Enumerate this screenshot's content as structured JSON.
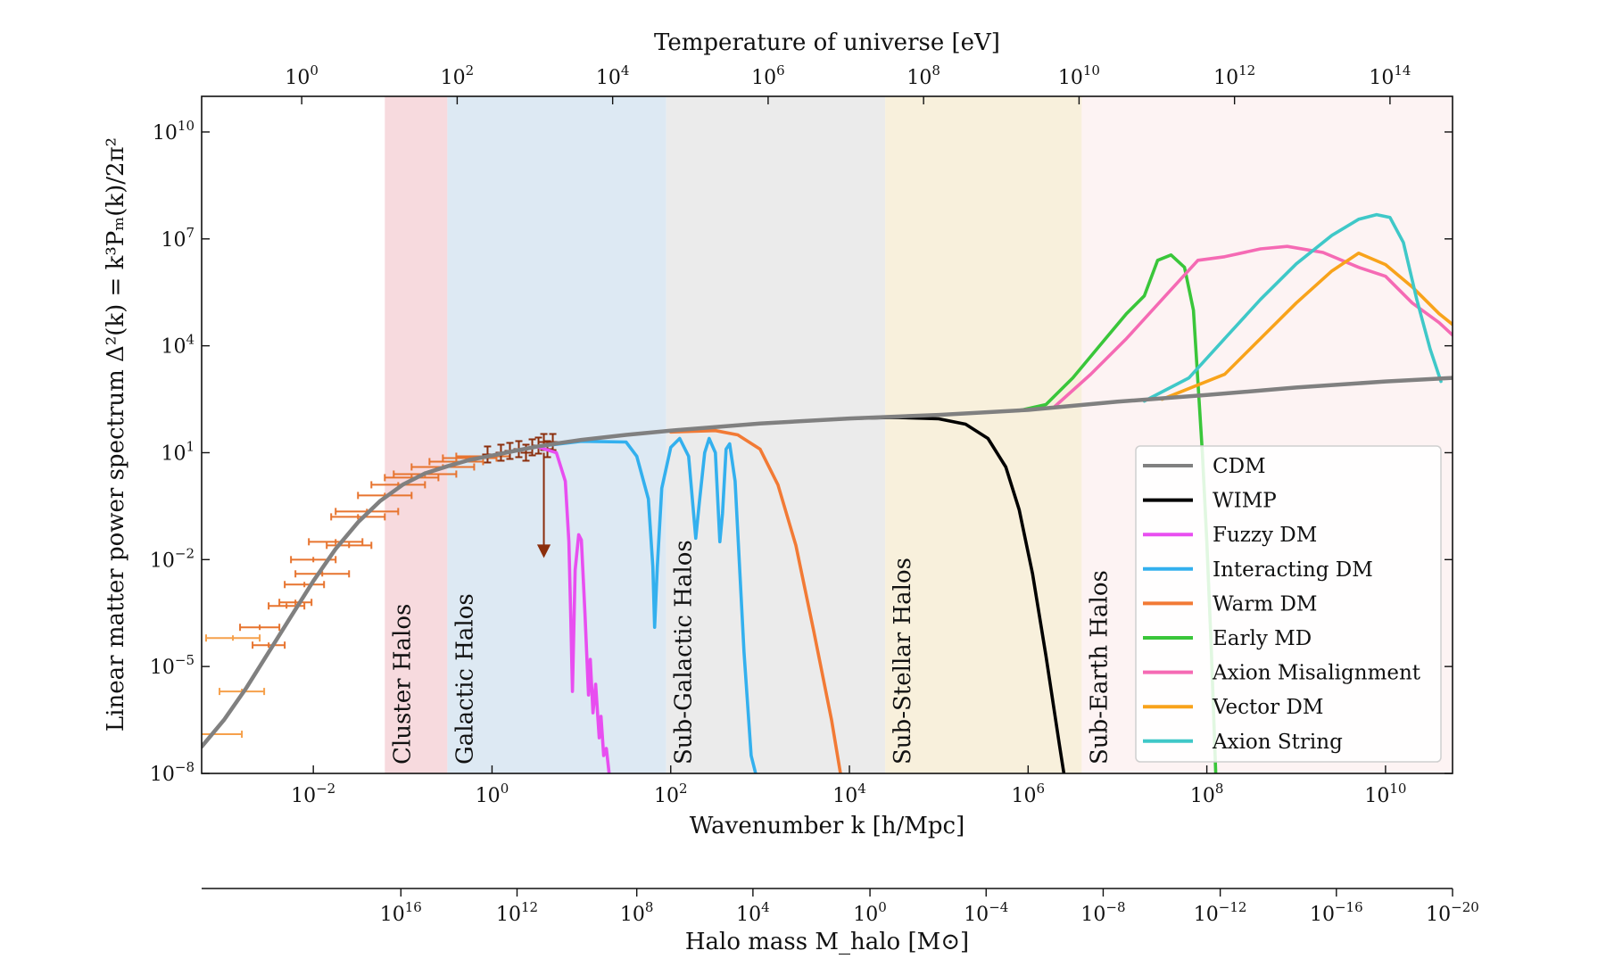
{
  "chart_data": {
    "type": "line",
    "xscale": "log",
    "yscale": "log",
    "xlabel": "Wavenumber k  [h/Mpc]",
    "ylabel": "Linear matter power spectrum Δ²(k) = k³Pₘ(k)/2π²",
    "top_xlabel": "Temperature of universe [eV]",
    "bottom_xlabel": "Halo mass M_halo [M⊙]",
    "xlim_log10": [
      -3.25,
      10.75
    ],
    "ylim_log10": [
      -8,
      11
    ],
    "x_ticks": [
      {
        "base": "10",
        "exp": "−2",
        "log10": -2
      },
      {
        "base": "10",
        "exp": "0",
        "log10": 0
      },
      {
        "base": "10",
        "exp": "2",
        "log10": 2
      },
      {
        "base": "10",
        "exp": "4",
        "log10": 4
      },
      {
        "base": "10",
        "exp": "6",
        "log10": 6
      },
      {
        "base": "10",
        "exp": "8",
        "log10": 8
      },
      {
        "base": "10",
        "exp": "10",
        "log10": 10
      }
    ],
    "y_ticks": [
      {
        "base": "10",
        "exp": "−8",
        "log10": -8
      },
      {
        "base": "10",
        "exp": "−5",
        "log10": -5
      },
      {
        "base": "10",
        "exp": "−2",
        "log10": -2
      },
      {
        "base": "10",
        "exp": "1",
        "log10": 1
      },
      {
        "base": "10",
        "exp": "4",
        "log10": 4
      },
      {
        "base": "10",
        "exp": "7",
        "log10": 7
      },
      {
        "base": "10",
        "exp": "10",
        "log10": 10
      }
    ],
    "top_ticks": [
      {
        "base": "10",
        "exp": "0",
        "log10_k": -2.13
      },
      {
        "base": "10",
        "exp": "2",
        "log10_k": -0.39
      },
      {
        "base": "10",
        "exp": "4",
        "log10_k": 1.35
      },
      {
        "base": "10",
        "exp": "6",
        "log10_k": 3.09
      },
      {
        "base": "10",
        "exp": "8",
        "log10_k": 4.83
      },
      {
        "base": "10",
        "exp": "10",
        "log10_k": 6.57
      },
      {
        "base": "10",
        "exp": "12",
        "log10_k": 8.31
      },
      {
        "base": "10",
        "exp": "14",
        "log10_k": 10.05
      }
    ],
    "bottom_ticks": [
      {
        "base": "10",
        "exp": "16",
        "log10_k": -1.02
      },
      {
        "base": "10",
        "exp": "12",
        "log10_k": 0.28
      },
      {
        "base": "10",
        "exp": "8",
        "log10_k": 1.62
      },
      {
        "base": "10",
        "exp": "4",
        "log10_k": 2.92
      },
      {
        "base": "10",
        "exp": "0",
        "log10_k": 4.23
      },
      {
        "base": "10",
        "exp": "−4",
        "log10_k": 5.53
      },
      {
        "base": "10",
        "exp": "−8",
        "log10_k": 6.84
      },
      {
        "base": "10",
        "exp": "−12",
        "log10_k": 8.15
      },
      {
        "base": "10",
        "exp": "−16",
        "log10_k": 9.45
      },
      {
        "base": "10",
        "exp": "−20",
        "log10_k": 10.75
      }
    ],
    "regions": [
      {
        "label": "Cluster Halos",
        "x_log10": [
          -1.2,
          -0.5
        ],
        "color": "#f7dade"
      },
      {
        "label": "Galactic Halos",
        "x_log10": [
          -0.5,
          1.95
        ],
        "color": "#dde9f3"
      },
      {
        "label": "Sub-Galactic Halos",
        "x_log10": [
          1.95,
          4.4
        ],
        "color": "#ebebeb"
      },
      {
        "label": "Sub-Stellar Halos",
        "x_log10": [
          4.4,
          6.6
        ],
        "color": "#f8f0dc"
      },
      {
        "label": "Sub-Earth Halos",
        "x_log10": [
          6.6,
          10.75
        ],
        "color": "#fdf3f3"
      }
    ],
    "series": [
      {
        "name": "CDM",
        "color": "#808080",
        "points": [
          [
            -3.25,
            -7.25
          ],
          [
            -3,
            -6.5
          ],
          [
            -2.75,
            -5.6
          ],
          [
            -2.5,
            -4.6
          ],
          [
            -2.25,
            -3.6
          ],
          [
            -2,
            -2.6
          ],
          [
            -1.75,
            -1.7
          ],
          [
            -1.5,
            -0.95
          ],
          [
            -1.25,
            -0.35
          ],
          [
            -1,
            0.1
          ],
          [
            -0.75,
            0.42
          ],
          [
            -0.5,
            0.62
          ],
          [
            -0.25,
            0.8
          ],
          [
            0,
            0.92
          ],
          [
            0.25,
            1.05
          ],
          [
            0.5,
            1.17
          ],
          [
            0.75,
            1.27
          ],
          [
            1,
            1.36
          ],
          [
            1.5,
            1.5
          ],
          [
            2,
            1.62
          ],
          [
            3,
            1.82
          ],
          [
            4,
            1.96
          ],
          [
            5,
            2.06
          ],
          [
            6,
            2.2
          ],
          [
            7,
            2.43
          ],
          [
            8,
            2.62
          ],
          [
            9,
            2.83
          ],
          [
            10,
            3.0
          ],
          [
            10.75,
            3.1
          ]
        ]
      },
      {
        "name": "WIMP",
        "color": "#000000",
        "points": [
          [
            1.5,
            1.5
          ],
          [
            2,
            1.62
          ],
          [
            3,
            1.82
          ],
          [
            4,
            1.96
          ],
          [
            4.5,
            1.99
          ],
          [
            5,
            1.95
          ],
          [
            5.3,
            1.8
          ],
          [
            5.55,
            1.4
          ],
          [
            5.75,
            0.6
          ],
          [
            5.9,
            -0.6
          ],
          [
            6.05,
            -2.4
          ],
          [
            6.2,
            -4.7
          ],
          [
            6.35,
            -7.2
          ],
          [
            6.4,
            -8
          ]
        ]
      },
      {
        "name": "Fuzzy DM",
        "color": "#e84ef0",
        "points": [
          [
            0.5,
            1.17
          ],
          [
            0.72,
            1.0
          ],
          [
            0.82,
            0.2
          ],
          [
            0.86,
            -1.5
          ],
          [
            0.88,
            -3.5
          ],
          [
            0.9,
            -5.7
          ],
          [
            0.93,
            -2.3
          ],
          [
            0.97,
            -1.3
          ],
          [
            1.0,
            -1.45
          ],
          [
            1.04,
            -3.5
          ],
          [
            1.08,
            -5.8
          ],
          [
            1.1,
            -4.8
          ],
          [
            1.13,
            -6.3
          ],
          [
            1.16,
            -5.5
          ],
          [
            1.2,
            -7.0
          ],
          [
            1.22,
            -6.4
          ],
          [
            1.25,
            -7.5
          ],
          [
            1.28,
            -7.3
          ],
          [
            1.31,
            -8
          ]
        ]
      },
      {
        "name": "Interacting DM",
        "color": "#33b0ee",
        "points": [
          [
            0,
            0.92
          ],
          [
            0.5,
            1.17
          ],
          [
            1,
            1.32
          ],
          [
            1.5,
            1.3
          ],
          [
            1.62,
            0.9
          ],
          [
            1.75,
            -0.3
          ],
          [
            1.8,
            -2.2
          ],
          [
            1.82,
            -3.9
          ],
          [
            1.85,
            -2.2
          ],
          [
            1.9,
            0
          ],
          [
            2.0,
            1.15
          ],
          [
            2.1,
            1.4
          ],
          [
            2.2,
            0.9
          ],
          [
            2.28,
            -1.4
          ],
          [
            2.32,
            -0.4
          ],
          [
            2.38,
            1.0
          ],
          [
            2.43,
            1.4
          ],
          [
            2.5,
            1.0
          ],
          [
            2.55,
            -1.5
          ],
          [
            2.58,
            -0.7
          ],
          [
            2.62,
            1.1
          ],
          [
            2.66,
            1.25
          ],
          [
            2.72,
            0.2
          ],
          [
            2.82,
            -4.6
          ],
          [
            2.9,
            -7.5
          ],
          [
            2.95,
            -8
          ]
        ]
      },
      {
        "name": "Warm DM",
        "color": "#f27a35",
        "points": [
          [
            2,
            1.58
          ],
          [
            2.5,
            1.62
          ],
          [
            2.75,
            1.5
          ],
          [
            3.0,
            1.1
          ],
          [
            3.2,
            0.1
          ],
          [
            3.4,
            -1.6
          ],
          [
            3.6,
            -4.0
          ],
          [
            3.8,
            -6.5
          ],
          [
            3.9,
            -8
          ]
        ]
      },
      {
        "name": "Early MD",
        "color": "#3ac63a",
        "points": [
          [
            5.9,
            2.18
          ],
          [
            6.2,
            2.35
          ],
          [
            6.5,
            3.1
          ],
          [
            6.8,
            4.0
          ],
          [
            7.1,
            4.9
          ],
          [
            7.3,
            5.4
          ],
          [
            7.45,
            6.4
          ],
          [
            7.6,
            6.55
          ],
          [
            7.75,
            6.2
          ],
          [
            7.85,
            5.0
          ],
          [
            7.9,
            3.0
          ],
          [
            7.95,
            1.0
          ],
          [
            8.0,
            -1.5
          ],
          [
            8.05,
            -4.5
          ],
          [
            8.1,
            -8
          ]
        ]
      },
      {
        "name": "Axion Misalignment",
        "color": "#f56ab4",
        "points": [
          [
            6.3,
            2.3
          ],
          [
            6.7,
            3.2
          ],
          [
            7.1,
            4.2
          ],
          [
            7.5,
            5.3
          ],
          [
            7.9,
            6.4
          ],
          [
            8.2,
            6.5
          ],
          [
            8.6,
            6.72
          ],
          [
            8.9,
            6.79
          ],
          [
            9.3,
            6.62
          ],
          [
            9.7,
            6.2
          ],
          [
            10.0,
            5.95
          ],
          [
            10.3,
            5.2
          ],
          [
            10.6,
            4.65
          ],
          [
            10.75,
            4.3
          ]
        ]
      },
      {
        "name": "Vector DM",
        "color": "#f8a31b",
        "points": [
          [
            7.5,
            2.5
          ],
          [
            8.2,
            3.2
          ],
          [
            8.6,
            4.2
          ],
          [
            9.0,
            5.2
          ],
          [
            9.4,
            6.1
          ],
          [
            9.7,
            6.6
          ],
          [
            10.0,
            6.28
          ],
          [
            10.3,
            5.65
          ],
          [
            10.6,
            4.9
          ],
          [
            10.75,
            4.6
          ]
        ]
      },
      {
        "name": "Axion String",
        "color": "#3fc8c8",
        "points": [
          [
            7.3,
            2.45
          ],
          [
            7.8,
            3.1
          ],
          [
            8.2,
            4.2
          ],
          [
            8.6,
            5.3
          ],
          [
            9.0,
            6.3
          ],
          [
            9.4,
            7.1
          ],
          [
            9.7,
            7.55
          ],
          [
            9.9,
            7.68
          ],
          [
            10.05,
            7.6
          ],
          [
            10.2,
            6.9
          ],
          [
            10.35,
            5.3
          ],
          [
            10.5,
            3.9
          ],
          [
            10.62,
            3.0
          ]
        ]
      }
    ],
    "measurements": {
      "color": "#e7742f",
      "light_color": "#f6a04b",
      "points": [
        [
          -3.3,
          -6.9,
          0.5
        ],
        [
          -2.9,
          -4.2,
          0.3
        ],
        [
          -2.8,
          -5.7,
          0.25
        ],
        [
          -2.6,
          -3.9,
          0.22
        ],
        [
          -2.5,
          -4.4,
          0.18
        ],
        [
          -2.3,
          -3.3,
          0.2
        ],
        [
          -2.2,
          -3.2,
          0.18
        ],
        [
          -2.1,
          -2.7,
          0.22
        ],
        [
          -2.0,
          -2.0,
          0.25
        ],
        [
          -1.9,
          -2.4,
          0.3
        ],
        [
          -1.75,
          -1.5,
          0.3
        ],
        [
          -1.6,
          -1.6,
          0.25
        ],
        [
          -1.5,
          -0.8,
          0.3
        ],
        [
          -1.4,
          -0.65,
          0.35
        ],
        [
          -1.2,
          -0.2,
          0.3
        ],
        [
          -1.05,
          0.1,
          0.3
        ],
        [
          -0.9,
          0.3,
          0.3
        ],
        [
          -0.75,
          0.4,
          0.35
        ],
        [
          -0.55,
          0.6,
          0.35
        ],
        [
          -0.4,
          0.75,
          0.3
        ],
        [
          -0.25,
          0.85,
          0.3
        ],
        [
          -0.1,
          0.9,
          0.3
        ]
      ]
    },
    "lya_points": {
      "color": "#8b2e0c",
      "points": [
        [
          -0.05,
          0.95
        ],
        [
          0.1,
          1.0
        ],
        [
          0.2,
          1.05
        ],
        [
          0.3,
          1.1
        ],
        [
          0.38,
          1.0
        ],
        [
          0.45,
          1.15
        ],
        [
          0.52,
          1.2
        ],
        [
          0.58,
          1.3
        ],
        [
          0.62,
          1.1
        ],
        [
          0.68,
          1.3
        ]
      ],
      "upper_limit": [
        0.58,
        1.0
      ]
    },
    "legend_position": "lower right"
  }
}
